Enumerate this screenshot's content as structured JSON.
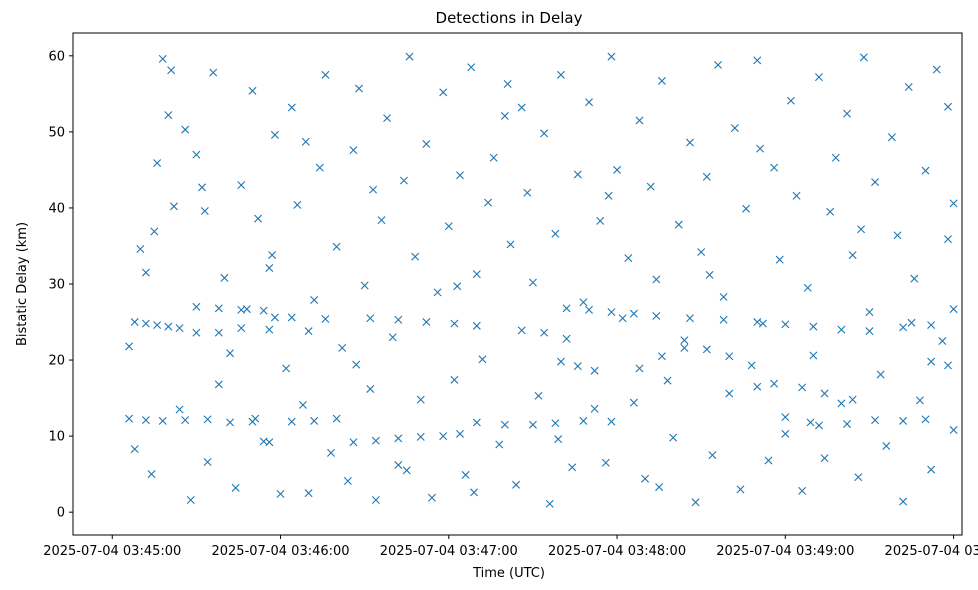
{
  "chart_data": {
    "type": "scatter",
    "title": "Detections in Delay",
    "xlabel": "Time (UTC)",
    "ylabel": "Bistatic Delay (km)",
    "x_unit": "seconds after 2025-07-04 03:45:00",
    "xlim": [
      -14,
      303
    ],
    "ylim": [
      -3,
      63
    ],
    "x_ticks": [
      {
        "value": 0,
        "label": "2025-07-04 03:45:00"
      },
      {
        "value": 60,
        "label": "2025-07-04 03:46:00"
      },
      {
        "value": 120,
        "label": "2025-07-04 03:47:00"
      },
      {
        "value": 180,
        "label": "2025-07-04 03:48:00"
      },
      {
        "value": 240,
        "label": "2025-07-04 03:49:00"
      },
      {
        "value": 300,
        "label": "2025-07-04 03:50:00"
      }
    ],
    "y_ticks": [
      0,
      10,
      20,
      30,
      40,
      50,
      60
    ],
    "marker": "x",
    "color": "#1f77b4",
    "series": [
      {
        "name": "Detections",
        "track_points": [
          [
            8,
            25
          ],
          [
            12,
            24.8
          ],
          [
            16,
            24.6
          ],
          [
            20,
            24.4
          ],
          [
            24,
            24.2
          ],
          [
            30,
            27
          ],
          [
            38,
            26.8
          ],
          [
            46,
            26.6
          ],
          [
            54,
            26.5
          ],
          [
            92,
            25.5
          ],
          [
            102,
            25.3
          ],
          [
            112,
            25
          ],
          [
            122,
            24.8
          ],
          [
            130,
            24.5
          ],
          [
            146,
            23.9
          ],
          [
            154,
            23.6
          ],
          [
            162,
            26.8
          ],
          [
            170,
            26.6
          ],
          [
            178,
            26.3
          ],
          [
            186,
            26.1
          ],
          [
            194,
            25.8
          ],
          [
            206,
            25.5
          ],
          [
            218,
            25.3
          ],
          [
            230,
            25
          ],
          [
            240,
            24.7
          ],
          [
            250,
            24.4
          ],
          [
            260,
            24
          ],
          [
            270,
            23.8
          ],
          [
            282,
            24.3
          ],
          [
            292,
            24.6
          ],
          [
            300,
            26.7
          ],
          [
            30,
            23.6
          ],
          [
            38,
            23.6
          ],
          [
            46,
            24.2
          ],
          [
            56,
            24
          ],
          [
            6,
            12.3
          ],
          [
            12,
            12.1
          ],
          [
            18,
            12
          ],
          [
            26,
            12.1
          ],
          [
            34,
            12.2
          ],
          [
            42,
            11.8
          ],
          [
            50,
            11.9
          ],
          [
            56,
            9.2
          ],
          [
            64,
            11.9
          ],
          [
            72,
            12
          ],
          [
            80,
            12.3
          ],
          [
            86,
            9.2
          ],
          [
            94,
            9.4
          ],
          [
            102,
            9.7
          ],
          [
            110,
            9.9
          ],
          [
            118,
            10
          ],
          [
            124,
            10.3
          ],
          [
            130,
            11.8
          ],
          [
            140,
            11.5
          ],
          [
            150,
            11.5
          ],
          [
            158,
            11.7
          ],
          [
            168,
            12
          ],
          [
            178,
            11.9
          ],
          [
            240,
            10.3
          ],
          [
            252,
            11.4
          ],
          [
            262,
            11.6
          ],
          [
            272,
            12.1
          ],
          [
            282,
            12
          ],
          [
            290,
            12.2
          ],
          [
            160,
            19.8
          ],
          [
            166,
            19.2
          ],
          [
            172,
            18.6
          ],
          [
            188,
            18.9
          ],
          [
            196,
            20.5
          ],
          [
            204,
            21.6
          ],
          [
            212,
            21.4
          ],
          [
            220,
            20.5
          ],
          [
            230,
            16.5
          ],
          [
            236,
            16.9
          ],
          [
            246,
            16.4
          ],
          [
            254,
            15.6
          ],
          [
            264,
            14.8
          ],
          [
            292,
            19.8
          ],
          [
            298,
            19.3
          ],
          [
            58,
            25.6
          ],
          [
            64,
            25.6
          ],
          [
            70,
            23.8
          ],
          [
            76,
            25.4
          ]
        ],
        "scatter_points": [
          [
            6,
            21.8
          ],
          [
            8,
            8.3
          ],
          [
            10,
            34.6
          ],
          [
            12,
            31.5
          ],
          [
            14,
            5
          ],
          [
            16,
            45.9
          ],
          [
            18,
            59.6
          ],
          [
            20,
            52.2
          ],
          [
            22,
            40.2
          ],
          [
            24,
            13.5
          ],
          [
            26,
            50.3
          ],
          [
            28,
            1.6
          ],
          [
            30,
            47
          ],
          [
            32,
            42.7
          ],
          [
            34,
            6.6
          ],
          [
            36,
            57.8
          ],
          [
            38,
            16.8
          ],
          [
            40,
            30.8
          ],
          [
            42,
            20.9
          ],
          [
            44,
            3.2
          ],
          [
            46,
            43
          ],
          [
            48,
            26.7
          ],
          [
            50,
            55.4
          ],
          [
            52,
            38.6
          ],
          [
            54,
            9.3
          ],
          [
            56,
            32.1
          ],
          [
            58,
            49.6
          ],
          [
            60,
            2.4
          ],
          [
            62,
            18.9
          ],
          [
            64,
            53.2
          ],
          [
            66,
            40.4
          ],
          [
            68,
            14.1
          ],
          [
            70,
            2.5
          ],
          [
            72,
            27.9
          ],
          [
            74,
            45.3
          ],
          [
            76,
            57.5
          ],
          [
            78,
            7.8
          ],
          [
            80,
            34.9
          ],
          [
            82,
            21.6
          ],
          [
            84,
            4.1
          ],
          [
            86,
            47.6
          ],
          [
            88,
            55.7
          ],
          [
            90,
            29.8
          ],
          [
            92,
            16.2
          ],
          [
            94,
            1.6
          ],
          [
            96,
            38.4
          ],
          [
            98,
            51.8
          ],
          [
            100,
            23
          ],
          [
            102,
            6.2
          ],
          [
            104,
            43.6
          ],
          [
            106,
            59.9
          ],
          [
            108,
            33.6
          ],
          [
            110,
            14.8
          ],
          [
            112,
            48.4
          ],
          [
            114,
            1.9
          ],
          [
            116,
            28.9
          ],
          [
            118,
            55.2
          ],
          [
            120,
            37.6
          ],
          [
            122,
            17.4
          ],
          [
            124,
            44.3
          ],
          [
            126,
            4.9
          ],
          [
            128,
            58.5
          ],
          [
            130,
            31.3
          ],
          [
            132,
            20.1
          ],
          [
            134,
            40.7
          ],
          [
            136,
            46.6
          ],
          [
            138,
            8.9
          ],
          [
            140,
            52.1
          ],
          [
            142,
            35.2
          ],
          [
            144,
            3.6
          ],
          [
            146,
            53.2
          ],
          [
            148,
            42
          ],
          [
            150,
            30.2
          ],
          [
            152,
            15.3
          ],
          [
            154,
            49.8
          ],
          [
            156,
            1.1
          ],
          [
            158,
            36.6
          ],
          [
            160,
            57.5
          ],
          [
            162,
            22.8
          ],
          [
            164,
            5.9
          ],
          [
            166,
            44.4
          ],
          [
            168,
            27.6
          ],
          [
            170,
            53.9
          ],
          [
            172,
            13.6
          ],
          [
            174,
            38.3
          ],
          [
            176,
            6.5
          ],
          [
            178,
            59.9
          ],
          [
            180,
            45
          ],
          [
            182,
            25.5
          ],
          [
            184,
            33.4
          ],
          [
            186,
            14.4
          ],
          [
            188,
            51.5
          ],
          [
            190,
            4.4
          ],
          [
            192,
            42.8
          ],
          [
            194,
            30.6
          ],
          [
            196,
            56.7
          ],
          [
            198,
            17.3
          ],
          [
            200,
            9.8
          ],
          [
            202,
            37.8
          ],
          [
            204,
            22.6
          ],
          [
            206,
            48.6
          ],
          [
            208,
            1.3
          ],
          [
            210,
            34.2
          ],
          [
            212,
            44.1
          ],
          [
            214,
            7.5
          ],
          [
            216,
            58.8
          ],
          [
            218,
            28.3
          ],
          [
            220,
            15.6
          ],
          [
            222,
            50.5
          ],
          [
            224,
            3
          ],
          [
            226,
            39.9
          ],
          [
            228,
            19.3
          ],
          [
            230,
            59.4
          ],
          [
            232,
            24.8
          ],
          [
            234,
            6.8
          ],
          [
            236,
            45.3
          ],
          [
            238,
            33.2
          ],
          [
            240,
            12.5
          ],
          [
            242,
            54.1
          ],
          [
            244,
            41.6
          ],
          [
            246,
            2.8
          ],
          [
            248,
            29.5
          ],
          [
            250,
            20.6
          ],
          [
            252,
            57.2
          ],
          [
            254,
            7.1
          ],
          [
            256,
            39.5
          ],
          [
            258,
            46.6
          ],
          [
            260,
            14.3
          ],
          [
            262,
            52.4
          ],
          [
            264,
            33.8
          ],
          [
            266,
            4.6
          ],
          [
            268,
            59.8
          ],
          [
            270,
            26.3
          ],
          [
            272,
            43.4
          ],
          [
            274,
            18.1
          ],
          [
            276,
            8.7
          ],
          [
            278,
            49.3
          ],
          [
            280,
            36.4
          ],
          [
            282,
            1.4
          ],
          [
            284,
            55.9
          ],
          [
            286,
            30.7
          ],
          [
            288,
            14.7
          ],
          [
            290,
            44.9
          ],
          [
            292,
            5.6
          ],
          [
            294,
            58.2
          ],
          [
            296,
            22.5
          ],
          [
            298,
            35.9
          ],
          [
            300,
            10.8
          ],
          [
            300,
            40.6
          ],
          [
            298,
            53.3
          ],
          [
            15,
            36.9
          ],
          [
            33,
            39.6
          ],
          [
            51,
            12.3
          ],
          [
            69,
            48.7
          ],
          [
            87,
            19.4
          ],
          [
            105,
            5.5
          ],
          [
            123,
            29.7
          ],
          [
            141,
            56.3
          ],
          [
            159,
            9.6
          ],
          [
            177,
            41.6
          ],
          [
            195,
            3.3
          ],
          [
            213,
            31.2
          ],
          [
            231,
            47.8
          ],
          [
            249,
            11.8
          ],
          [
            267,
            37.2
          ],
          [
            285,
            24.9
          ],
          [
            21,
            58.1
          ],
          [
            57,
            33.8
          ],
          [
            93,
            42.4
          ],
          [
            129,
            2.6
          ]
        ]
      }
    ]
  }
}
